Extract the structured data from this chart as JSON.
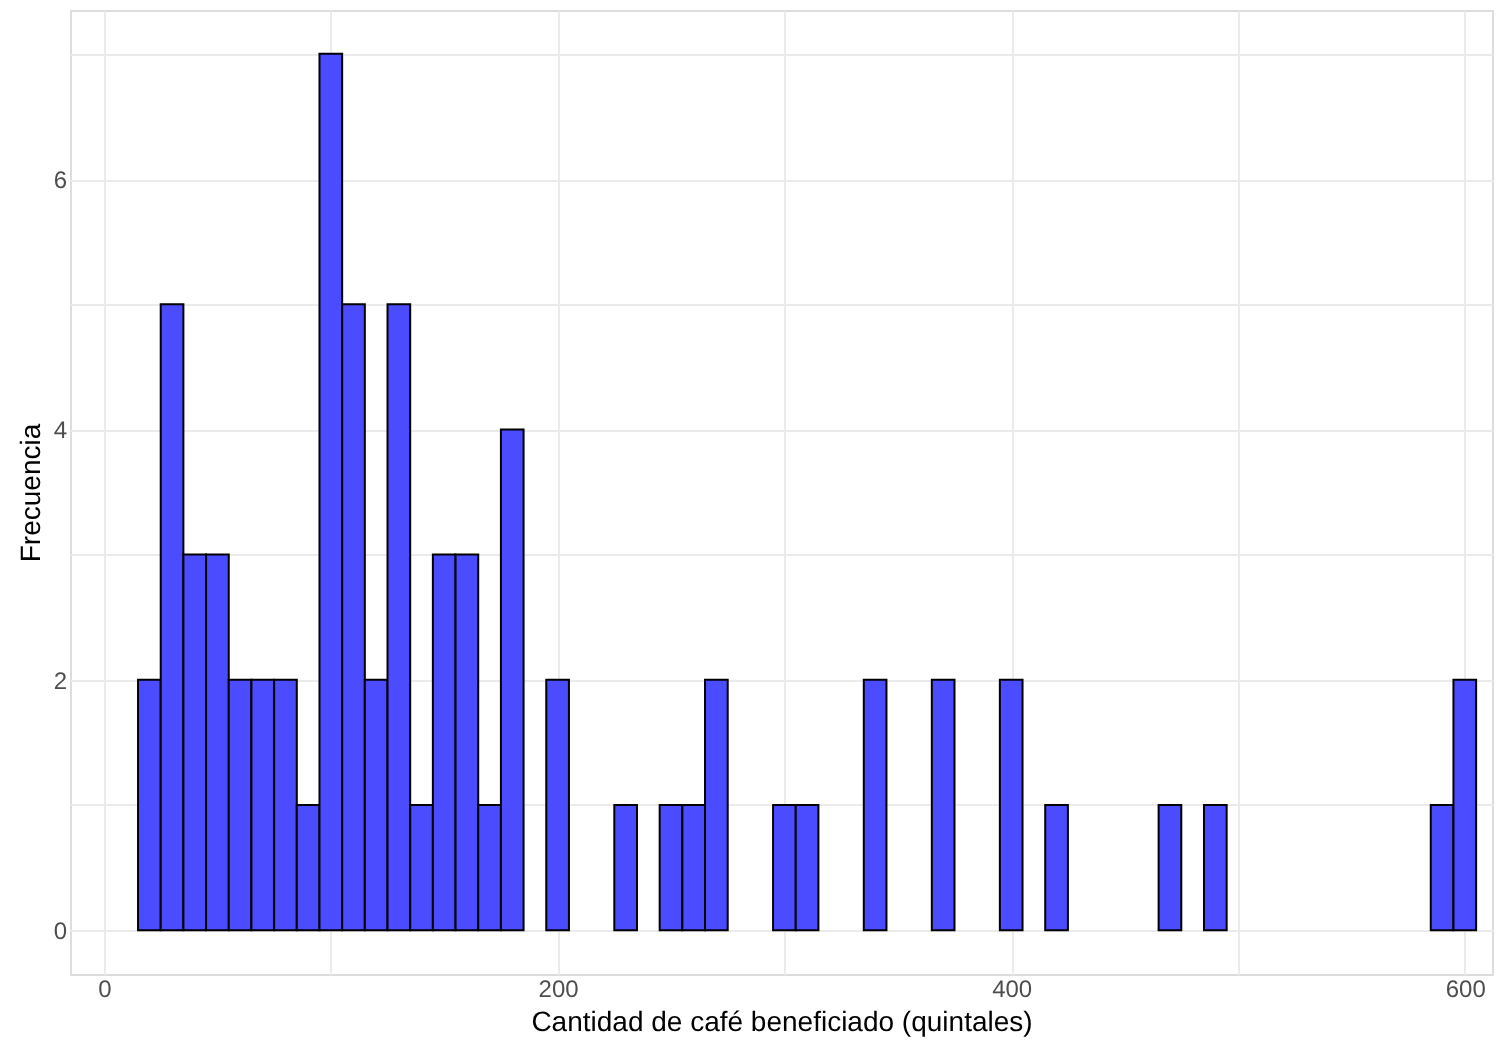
{
  "chart_data": {
    "type": "histogram",
    "xlabel": "Cantidad de café beneficiado (quintales)",
    "ylabel": "Frecuencia",
    "bins": [
      15,
      25,
      35,
      45,
      55,
      65,
      75,
      85,
      95,
      105,
      115,
      125,
      135,
      145,
      155,
      165,
      175,
      185,
      195,
      205,
      215,
      225,
      235,
      245,
      255,
      265,
      275,
      285,
      295,
      305,
      315,
      325,
      335,
      345,
      355,
      365,
      375,
      385,
      395,
      405,
      415,
      425,
      435,
      445,
      455,
      465,
      475,
      485,
      495,
      505,
      515,
      525,
      535,
      545,
      555,
      565,
      575,
      585,
      595,
      605
    ],
    "values": [
      2,
      5,
      3,
      3,
      2,
      2,
      2,
      1,
      7,
      5,
      2,
      5,
      1,
      3,
      3,
      1,
      4,
      0,
      2,
      0,
      0,
      1,
      0,
      1,
      1,
      2,
      0,
      0,
      1,
      1,
      0,
      0,
      2,
      0,
      0,
      2,
      0,
      0,
      2,
      0,
      1,
      0,
      0,
      0,
      0,
      1,
      0,
      1,
      0,
      0,
      0,
      0,
      0,
      0,
      0,
      0,
      0,
      1,
      2
    ],
    "color": "#4b4bff",
    "xlim": [
      -15,
      612
    ],
    "ylim": [
      -0.35,
      7.35
    ],
    "xticks": [
      0,
      {
        "value": 100,
        "label": null
      },
      200,
      {
        "value": 300,
        "label": null
      },
      400,
      {
        "value": 500,
        "label": null
      },
      600
    ],
    "yticks": [
      0,
      {
        "value": 1,
        "label": null
      },
      2,
      {
        "value": 3,
        "label": null
      },
      4,
      {
        "value": 5,
        "label": null
      },
      6,
      {
        "value": 7,
        "label": null
      }
    ],
    "grid": true
  }
}
